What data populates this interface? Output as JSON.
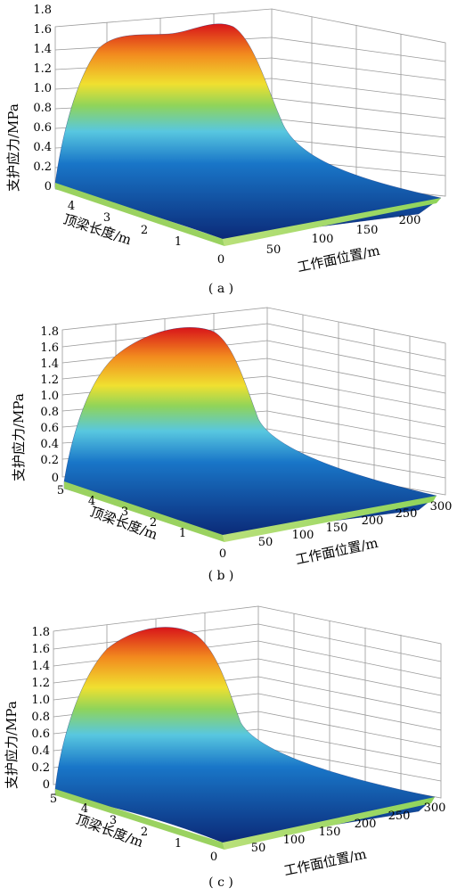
{
  "chart_data": [
    {
      "type": "surface",
      "caption": "( a )",
      "xlabel": "工作面位置/m",
      "ylabel": "顶梁长度/m",
      "zlabel": "支护应力/MPa",
      "x_ticks": [
        "50",
        "100",
        "150",
        "200"
      ],
      "y_ticks": [
        "0",
        "1",
        "2",
        "3",
        "4"
      ],
      "z_ticks": [
        "0",
        "0.2",
        "0.4",
        "0.6",
        "0.8",
        "1.0",
        "1.2",
        "1.4",
        "1.6",
        "1.8"
      ],
      "xlim": [
        0,
        220
      ],
      "ylim": [
        0,
        4.6
      ],
      "zlim": [
        0,
        1.8
      ],
      "peak_stress": 1.8,
      "grid": true,
      "colormap": [
        "#0b2a78",
        "#1976c8",
        "#58c7e0",
        "#8fd45a",
        "#f0e030",
        "#f28a1e",
        "#d8141a"
      ]
    },
    {
      "type": "surface",
      "caption": "( b )",
      "xlabel": "工作面位置/m",
      "ylabel": "顶梁长度/m",
      "zlabel": "支护应力/MPa",
      "x_ticks": [
        "50",
        "100",
        "150",
        "200",
        "250",
        "300"
      ],
      "y_ticks": [
        "0",
        "1",
        "2",
        "3",
        "4",
        "5"
      ],
      "z_ticks": [
        "0",
        "0.2",
        "0.4",
        "0.6",
        "0.8",
        "1.0",
        "1.2",
        "1.4",
        "1.6",
        "1.8"
      ],
      "xlim": [
        0,
        300
      ],
      "ylim": [
        0,
        5
      ],
      "zlim": [
        0,
        1.8
      ],
      "peak_stress": 1.8,
      "grid": true,
      "colormap": [
        "#0b2a78",
        "#1976c8",
        "#58c7e0",
        "#8fd45a",
        "#f0e030",
        "#f28a1e",
        "#d8141a"
      ]
    },
    {
      "type": "surface",
      "caption": "( c )",
      "xlabel": "工作面位置/m",
      "ylabel": "顶梁长度/m",
      "zlabel": "支护应力/MPa",
      "x_ticks": [
        "0",
        "50",
        "100",
        "150",
        "200",
        "250",
        "300"
      ],
      "y_ticks": [
        "1",
        "2",
        "3",
        "4",
        "5"
      ],
      "z_ticks": [
        "0",
        "0.2",
        "0.4",
        "0.6",
        "0.8",
        "1.0",
        "1.2",
        "1.4",
        "1.6",
        "1.8"
      ],
      "xlim": [
        0,
        300
      ],
      "ylim": [
        0,
        5
      ],
      "zlim": [
        0,
        1.8
      ],
      "peak_stress": 1.8,
      "grid": true,
      "colormap": [
        "#0b2a78",
        "#1976c8",
        "#58c7e0",
        "#8fd45a",
        "#f0e030",
        "#f28a1e",
        "#d8141a"
      ]
    }
  ]
}
